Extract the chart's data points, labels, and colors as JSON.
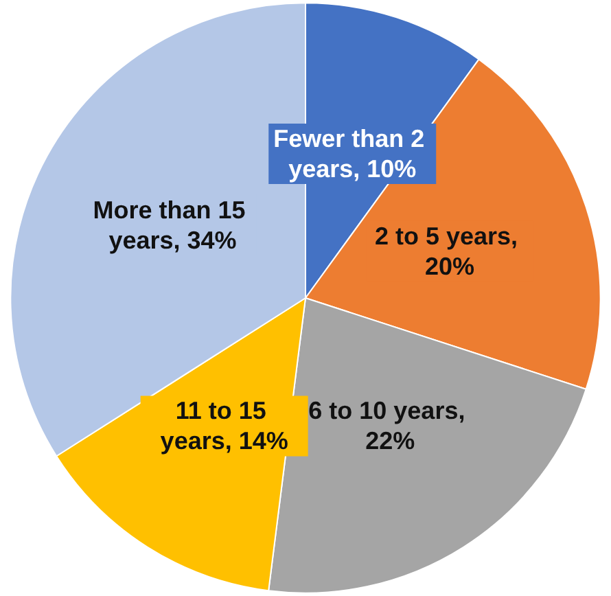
{
  "chart_data": {
    "type": "pie",
    "categories": [
      "Fewer than 2 years",
      "2 to 5 years",
      "6 to 10 years",
      "11 to 15 years",
      "More than 15 years"
    ],
    "values": [
      10,
      20,
      22,
      14,
      34
    ],
    "colors": [
      "#4472c4",
      "#ed7d31",
      "#a5a5a5",
      "#ffc000",
      "#b4c7e7"
    ],
    "value_labels": [
      ", 10%",
      ", 20%",
      ", 22%",
      ", 14%",
      ", 34%"
    ],
    "legend": false
  }
}
